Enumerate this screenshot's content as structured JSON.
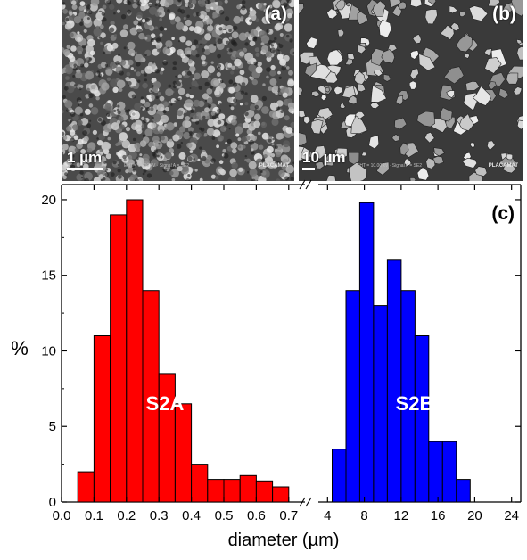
{
  "micrographs": [
    {
      "panel": "(a)",
      "scale": "1 µm",
      "brand": "PLACAMAT"
    },
    {
      "panel": "(b)",
      "scale": "10 µm",
      "brand": "PLACAMAT"
    }
  ],
  "chart_data": {
    "type": "bar",
    "panel": "(c)",
    "ylabel": "%",
    "xlabel": "diameter (µm)",
    "ylim": [
      0,
      21
    ],
    "yticks": [
      0,
      5,
      10,
      15,
      20
    ],
    "x_axis_break": true,
    "series": [
      {
        "name": "S2A",
        "color": "#ff0000",
        "xlim": [
          0.0,
          0.75
        ],
        "xticks": [
          "0.0",
          "0.1",
          "0.2",
          "0.3",
          "0.4",
          "0.5",
          "0.6",
          "0.7"
        ],
        "bin_width": 0.05,
        "x": [
          0.075,
          0.125,
          0.175,
          0.225,
          0.275,
          0.325,
          0.375,
          0.425,
          0.475,
          0.525,
          0.575,
          0.625,
          0.675
        ],
        "values": [
          2,
          11,
          19,
          20,
          14,
          8.5,
          6.5,
          2.5,
          1.5,
          1.5,
          1.75,
          1.4,
          1
        ]
      },
      {
        "name": "S2B",
        "color": "#0000ff",
        "xlim": [
          3,
          25
        ],
        "xticks": [
          "4",
          "8",
          "12",
          "16",
          "20",
          "24"
        ],
        "bin_width": 1.5,
        "x": [
          5.25,
          6.75,
          8.25,
          9.75,
          11.25,
          12.75,
          14.25,
          15.75,
          17.25,
          18.75,
          20.25,
          21.75
        ],
        "values": [
          3.5,
          14,
          19.8,
          13,
          16,
          14,
          11,
          4,
          4,
          1.5,
          0,
          0
        ]
      }
    ]
  }
}
